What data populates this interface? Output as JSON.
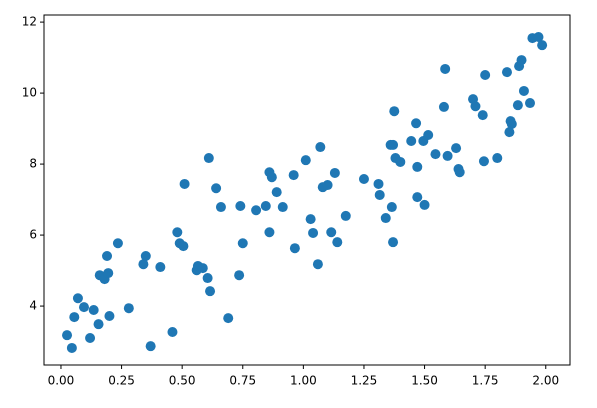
{
  "chart_data": {
    "type": "scatter",
    "color": "#1f77b4",
    "x": [
      0.025,
      0.045,
      0.055,
      0.07,
      0.095,
      0.12,
      0.135,
      0.155,
      0.16,
      0.18,
      0.195,
      0.19,
      0.2,
      0.235,
      0.28,
      0.34,
      0.35,
      0.37,
      0.41,
      0.46,
      0.48,
      0.49,
      0.505,
      0.51,
      0.56,
      0.565,
      0.585,
      0.605,
      0.61,
      0.615,
      0.64,
      0.66,
      0.69,
      0.74,
      0.735,
      0.75,
      0.805,
      0.845,
      0.86,
      0.86,
      0.87,
      0.89,
      0.915,
      0.96,
      0.965,
      1.01,
      1.03,
      1.04,
      1.06,
      1.07,
      1.08,
      1.1,
      1.115,
      1.13,
      1.14,
      1.175,
      1.25,
      1.31,
      1.315,
      1.34,
      1.36,
      1.365,
      1.37,
      1.37,
      1.375,
      1.38,
      1.4,
      1.445,
      1.465,
      1.47,
      1.47,
      1.495,
      1.5,
      1.515,
      1.545,
      1.58,
      1.585,
      1.595,
      1.63,
      1.64,
      1.645,
      1.7,
      1.71,
      1.74,
      1.745,
      1.75,
      1.8,
      1.84,
      1.85,
      1.855,
      1.86,
      1.885,
      1.89,
      1.9,
      1.91,
      1.935,
      1.945,
      1.97,
      1.985
    ],
    "values": [
      3.18,
      2.82,
      3.69,
      4.22,
      3.97,
      3.1,
      3.89,
      3.49,
      4.87,
      4.76,
      4.93,
      5.41,
      3.72,
      5.77,
      3.94,
      5.18,
      5.41,
      2.87,
      5.1,
      3.27,
      6.08,
      5.77,
      5.69,
      7.44,
      5.01,
      5.13,
      5.07,
      4.79,
      8.17,
      4.42,
      7.32,
      6.79,
      3.66,
      6.82,
      4.87,
      5.77,
      6.7,
      6.82,
      6.08,
      7.77,
      7.63,
      7.21,
      6.79,
      7.69,
      5.63,
      8.11,
      6.45,
      6.06,
      5.18,
      8.48,
      7.35,
      7.41,
      6.08,
      7.75,
      5.8,
      6.54,
      7.58,
      7.44,
      7.13,
      6.48,
      8.54,
      6.79,
      8.54,
      5.8,
      9.49,
      8.17,
      8.06,
      8.65,
      9.15,
      7.07,
      7.92,
      8.65,
      6.85,
      8.82,
      8.28,
      9.61,
      10.68,
      8.23,
      8.45,
      7.86,
      7.77,
      9.83,
      9.63,
      9.38,
      8.08,
      10.51,
      8.17,
      10.59,
      8.9,
      9.21,
      9.13,
      9.66,
      10.76,
      10.93,
      10.06,
      9.72,
      11.55,
      11.58,
      11.35
    ],
    "xlim": [
      -0.07,
      2.1
    ],
    "ylim": [
      2.34,
      12.2
    ],
    "xticks": [
      {
        "value": 0,
        "label": "0.00"
      },
      {
        "value": 0.25,
        "label": "0.25"
      },
      {
        "value": 0.5,
        "label": "0.50"
      },
      {
        "value": 0.75,
        "label": "0.75"
      },
      {
        "value": 1,
        "label": "1.00"
      },
      {
        "value": 1.25,
        "label": "1.25"
      },
      {
        "value": 1.5,
        "label": "1.50"
      },
      {
        "value": 1.75,
        "label": "1.75"
      },
      {
        "value": 2,
        "label": "2.00"
      }
    ],
    "yticks": [
      4,
      6,
      8,
      10,
      12
    ]
  }
}
